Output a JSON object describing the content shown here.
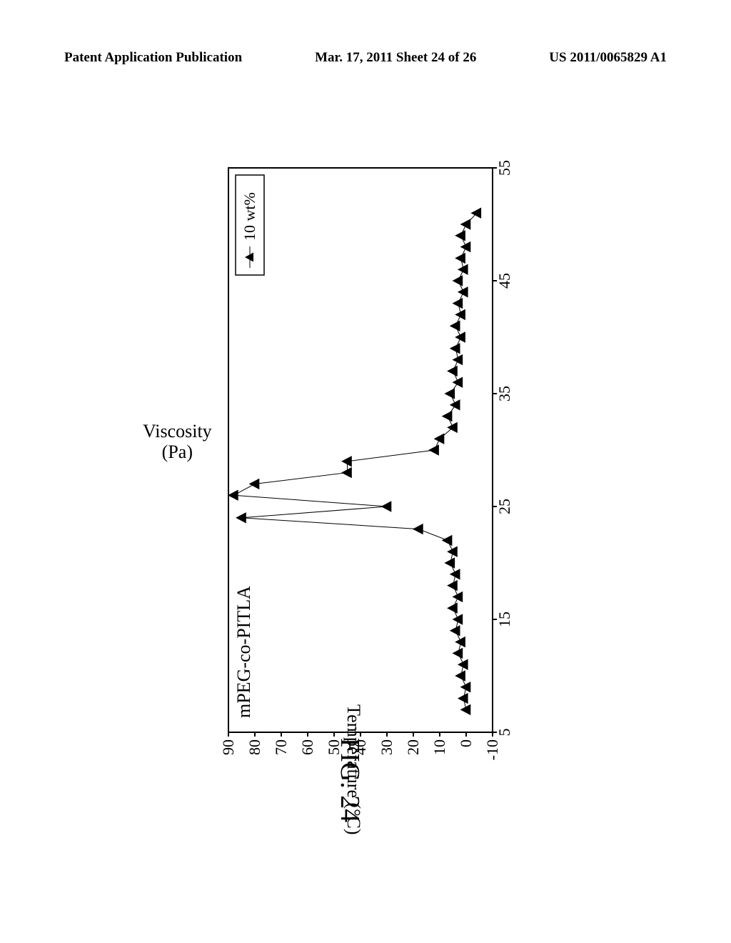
{
  "header": {
    "left": "Patent Application Publication",
    "center": "Mar. 17, 2011  Sheet 24 of 26",
    "right": "US 2011/0065829 A1"
  },
  "chart": {
    "type": "line_scatter",
    "title": "mPEG-co-PITLA",
    "title_fontsize": 26,
    "legend_label": "10 wt%",
    "legend_marker": "triangle",
    "xlabel": "Temperature (°C)",
    "ylabel_line1": "Viscosity",
    "ylabel_line2": "(Pa)",
    "label_fontsize": 26,
    "xlim": [
      5,
      55
    ],
    "ylim": [
      -10,
      90
    ],
    "xticks": [
      5,
      15,
      25,
      35,
      45,
      55
    ],
    "yticks": [
      -10,
      0,
      10,
      20,
      30,
      40,
      50,
      60,
      70,
      80,
      90
    ],
    "background_color": "#ffffff",
    "border_color": "#000000",
    "marker_color": "#000000",
    "line_color": "#000000",
    "line_width": 1,
    "marker_size": 14,
    "data_points": [
      {
        "x": 7,
        "y": 0
      },
      {
        "x": 8,
        "y": 1
      },
      {
        "x": 9,
        "y": 0
      },
      {
        "x": 10,
        "y": 2
      },
      {
        "x": 11,
        "y": 1
      },
      {
        "x": 12,
        "y": 3
      },
      {
        "x": 13,
        "y": 2
      },
      {
        "x": 14,
        "y": 4
      },
      {
        "x": 15,
        "y": 3
      },
      {
        "x": 16,
        "y": 5
      },
      {
        "x": 17,
        "y": 3
      },
      {
        "x": 18,
        "y": 5
      },
      {
        "x": 19,
        "y": 4
      },
      {
        "x": 20,
        "y": 6
      },
      {
        "x": 21,
        "y": 5
      },
      {
        "x": 22,
        "y": 7
      },
      {
        "x": 23,
        "y": 18
      },
      {
        "x": 24,
        "y": 85
      },
      {
        "x": 25,
        "y": 30
      },
      {
        "x": 26,
        "y": 88
      },
      {
        "x": 27,
        "y": 80
      },
      {
        "x": 28,
        "y": 45
      },
      {
        "x": 29,
        "y": 45
      },
      {
        "x": 30,
        "y": 12
      },
      {
        "x": 31,
        "y": 10
      },
      {
        "x": 32,
        "y": 5
      },
      {
        "x": 33,
        "y": 7
      },
      {
        "x": 34,
        "y": 4
      },
      {
        "x": 35,
        "y": 6
      },
      {
        "x": 36,
        "y": 3
      },
      {
        "x": 37,
        "y": 5
      },
      {
        "x": 38,
        "y": 3
      },
      {
        "x": 39,
        "y": 4
      },
      {
        "x": 40,
        "y": 2
      },
      {
        "x": 41,
        "y": 4
      },
      {
        "x": 42,
        "y": 2
      },
      {
        "x": 43,
        "y": 3
      },
      {
        "x": 44,
        "y": 1
      },
      {
        "x": 45,
        "y": 3
      },
      {
        "x": 46,
        "y": 1
      },
      {
        "x": 47,
        "y": 2
      },
      {
        "x": 48,
        "y": 0
      },
      {
        "x": 49,
        "y": 2
      },
      {
        "x": 50,
        "y": 0
      },
      {
        "x": 51,
        "y": -4
      }
    ],
    "figure_number": "FIG. 24",
    "figure_fontsize": 38
  }
}
